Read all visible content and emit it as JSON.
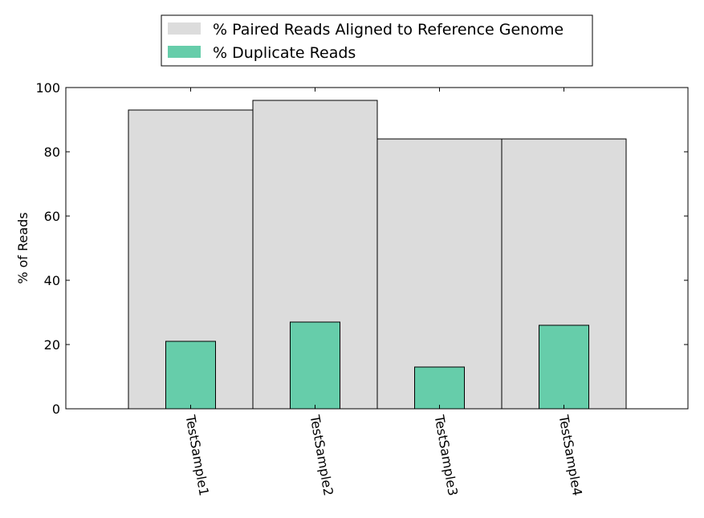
{
  "chart_data": {
    "type": "bar",
    "categories": [
      "TestSample1",
      "TestSample2",
      "TestSample3",
      "TestSample4"
    ],
    "series": [
      {
        "name": "% Paired Reads Aligned to Reference Genome",
        "values": [
          93,
          96,
          84,
          84
        ],
        "color": "#dcdcdc"
      },
      {
        "name": "% Duplicate Reads",
        "values": [
          21,
          27,
          13,
          26
        ],
        "color": "#66cdaa"
      }
    ],
    "title": "",
    "xlabel": "",
    "ylabel": "% of Reads",
    "ylim": [
      0,
      100
    ],
    "yticks": [
      0,
      20,
      40,
      60,
      80,
      100
    ],
    "grid": false,
    "legend_position": "top-center, outside plot"
  }
}
